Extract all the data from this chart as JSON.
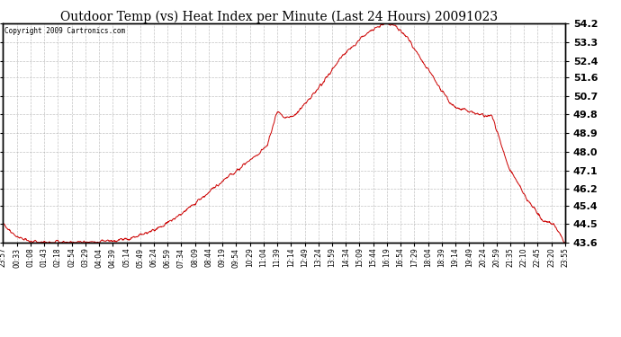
{
  "title": "Outdoor Temp (vs) Heat Index per Minute (Last 24 Hours) 20091023",
  "copyright": "Copyright 2009 Cartronics.com",
  "line_color": "#cc0000",
  "bg_color": "#ffffff",
  "plot_bg_color": "#ffffff",
  "grid_color": "#aaaaaa",
  "yticks": [
    43.6,
    44.5,
    45.4,
    46.2,
    47.1,
    48.0,
    48.9,
    49.8,
    50.7,
    51.6,
    52.4,
    53.3,
    54.2
  ],
  "xtick_labels": [
    "23:57",
    "00:33",
    "01:08",
    "01:43",
    "02:18",
    "02:54",
    "03:29",
    "04:04",
    "04:39",
    "05:14",
    "05:49",
    "06:24",
    "06:59",
    "07:34",
    "08:09",
    "08:44",
    "09:19",
    "09:54",
    "10:29",
    "11:04",
    "11:39",
    "12:14",
    "12:49",
    "13:24",
    "13:59",
    "14:34",
    "15:09",
    "15:44",
    "16:19",
    "16:54",
    "17:29",
    "18:04",
    "18:39",
    "19:14",
    "19:49",
    "20:24",
    "20:59",
    "21:35",
    "22:10",
    "22:45",
    "23:20",
    "23:55"
  ],
  "ymin": 43.6,
  "ymax": 54.2,
  "title_fontsize": 11,
  "ylabel_fontsize": 8,
  "xlabel_fontsize": 6
}
